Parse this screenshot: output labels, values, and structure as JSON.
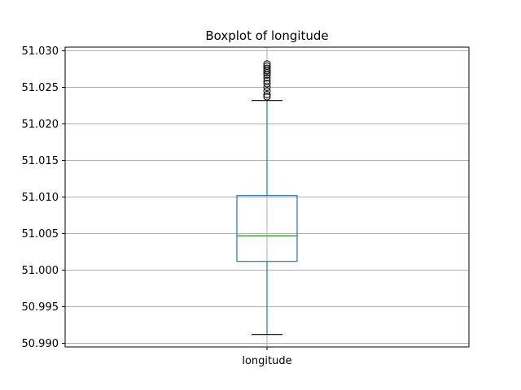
{
  "chart_data": {
    "type": "boxplot",
    "title": "Boxplot of longitude",
    "categories": [
      "longitude"
    ],
    "xlabel": "",
    "ylabel": "",
    "ylim": [
      50.9895,
      51.0305
    ],
    "y_ticks": [
      "50.990",
      "50.995",
      "51.000",
      "51.005",
      "51.010",
      "51.015",
      "51.020",
      "51.025",
      "51.030"
    ],
    "grid": true,
    "boxes": [
      {
        "label": "longitude",
        "whisker_low": 50.9912,
        "q1": 51.0012,
        "median": 51.0047,
        "q3": 51.0102,
        "whisker_high": 51.0232,
        "outliers": [
          51.0237,
          51.024,
          51.0245,
          51.025,
          51.0255,
          51.0259,
          51.0263,
          51.0267,
          51.027,
          51.0273,
          51.0276,
          51.0279,
          51.0282
        ]
      }
    ],
    "colors": {
      "box": "#1f77b4",
      "whisker": "#1f77b4",
      "caps": "#000000",
      "median": "#2ca02c",
      "flier": "#000000",
      "grid": "#b0b0b0",
      "axes": "#000000"
    }
  }
}
